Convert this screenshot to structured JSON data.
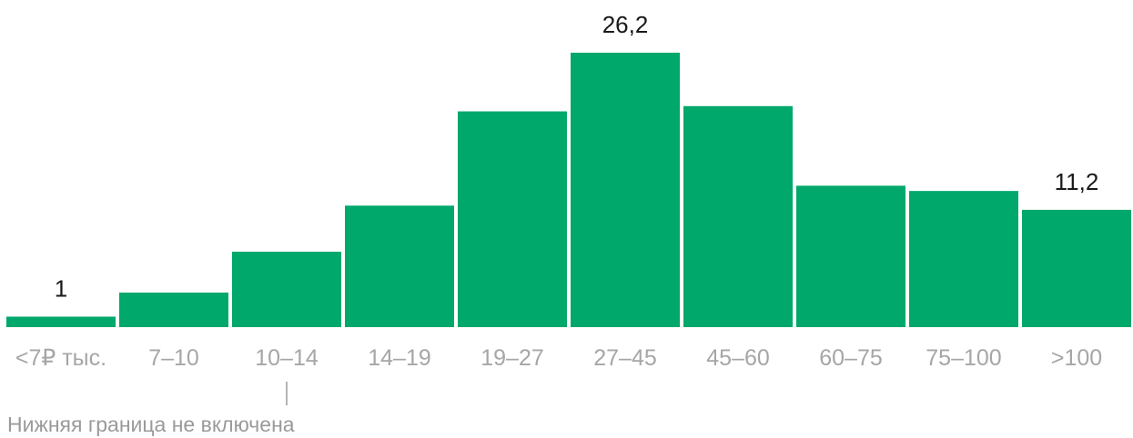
{
  "chart_data": {
    "type": "bar",
    "categories": [
      "<7₽ тыс.",
      "7–10",
      "10–14",
      "14–19",
      "19–27",
      "27–45",
      "45–60",
      "60–75",
      "75–100",
      ">100"
    ],
    "values": [
      1,
      3.3,
      7.2,
      11.6,
      20.6,
      26.2,
      21.1,
      13.5,
      13,
      11.2
    ],
    "value_labels": [
      {
        "index": 0,
        "text": "1"
      },
      {
        "index": 5,
        "text": "26,2"
      },
      {
        "index": 9,
        "text": "11,2"
      }
    ],
    "title": "",
    "xlabel": "",
    "ylabel": "",
    "ylim": [
      0,
      26.2
    ],
    "grid": false,
    "legend": "none",
    "colors": {
      "bar": "#00a86b",
      "value_label": "#1a1a1a",
      "tick_label": "#a6a6a6",
      "note": "#9a9a9a"
    },
    "annotation": {
      "category_index": 2,
      "text": "Нижняя граница не включена"
    }
  }
}
